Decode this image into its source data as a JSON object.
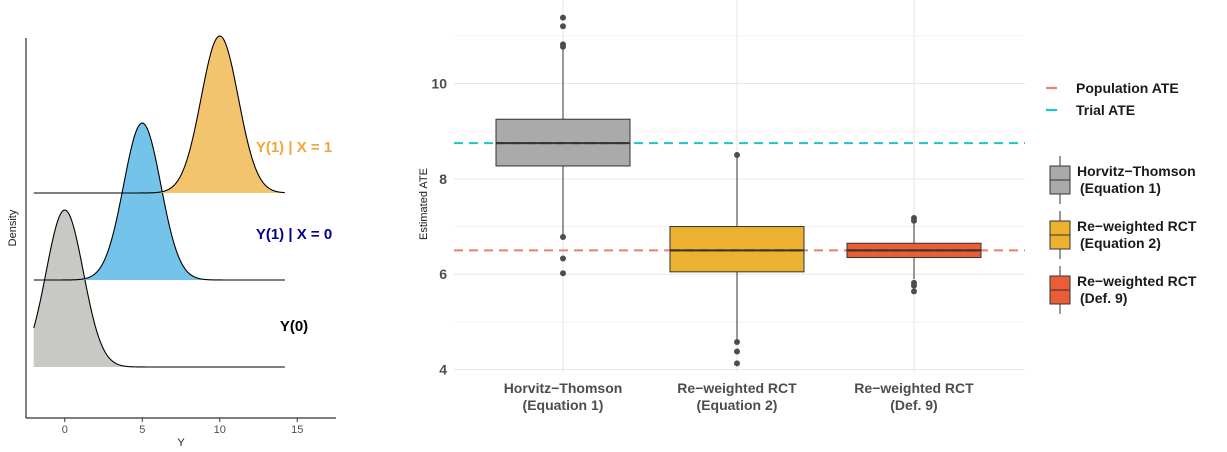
{
  "chart_data": [
    {
      "type": "area",
      "xlabel": "Y",
      "ylabel": "Density",
      "xlim": [
        -2.5,
        17.5
      ],
      "xticks": [
        "0",
        "5",
        "10",
        "15"
      ],
      "xtick_values": [
        0,
        5,
        10,
        15
      ],
      "grid": false,
      "series": [
        {
          "name": "Y(0)",
          "mean": 0,
          "sd": 1.2,
          "x_range": [
            -2,
            14.2
          ],
          "color": "#c8c8c4",
          "label_color": "#000000"
        },
        {
          "name": "Y(1) | X = 0",
          "mean": 5,
          "sd": 1.2,
          "x_range": [
            -2,
            14.2
          ],
          "color": "#74c3ea",
          "label_color": "#00008b"
        },
        {
          "name": "Y(1) | X = 1",
          "mean": 10,
          "sd": 1.2,
          "x_range": [
            -2,
            14.2
          ],
          "color": "#f2c46d",
          "label_color": "#f2a53a"
        }
      ]
    },
    {
      "type": "box",
      "xlabel": "",
      "ylabel": "Estimated ATE",
      "ylim": [
        3.95,
        11.75
      ],
      "yticks": [
        "4",
        "6",
        "8",
        "10"
      ],
      "ytick_values": [
        4,
        6,
        8,
        10
      ],
      "grid": true,
      "legend_position": "right",
      "categories": [
        "Horvitz−Thomson\n(Equation 1)",
        "Re−weighted RCT\n(Equation 2)",
        "Re−weighted RCT\n(Def. 9)"
      ],
      "boxes": [
        {
          "name": "Horvitz−Thomson\n(Equation 1)",
          "q1": 8.27,
          "median": 8.75,
          "q3": 9.25,
          "whisker_low": 6.8,
          "whisker_high": 10.75,
          "outliers": [
            6.78,
            6.33,
            6.02,
            10.77,
            10.82,
            11.2,
            11.38
          ],
          "color": "#aaaaaa"
        },
        {
          "name": "Re−weighted RCT\n(Equation 2)",
          "q1": 6.05,
          "median": 6.5,
          "q3": 7.0,
          "whisker_low": 4.6,
          "whisker_high": 8.5,
          "outliers": [
            8.5,
            4.58,
            4.38,
            4.13
          ],
          "color": "#ecb12e"
        },
        {
          "name": "Re−weighted RCT\n(Def. 9)",
          "q1": 6.35,
          "median": 6.5,
          "q3": 6.65,
          "whisker_low": 5.9,
          "whisker_high": 7.1,
          "outliers": [
            7.12,
            7.18,
            5.82,
            5.76,
            5.64
          ],
          "color": "#ea5e37"
        }
      ],
      "reference_lines": [
        {
          "name": "Population ATE",
          "y": 6.5,
          "color": "#f07e6e"
        },
        {
          "name": "Trial ATE",
          "y": 8.75,
          "color": "#1ec3cc"
        }
      ]
    }
  ]
}
